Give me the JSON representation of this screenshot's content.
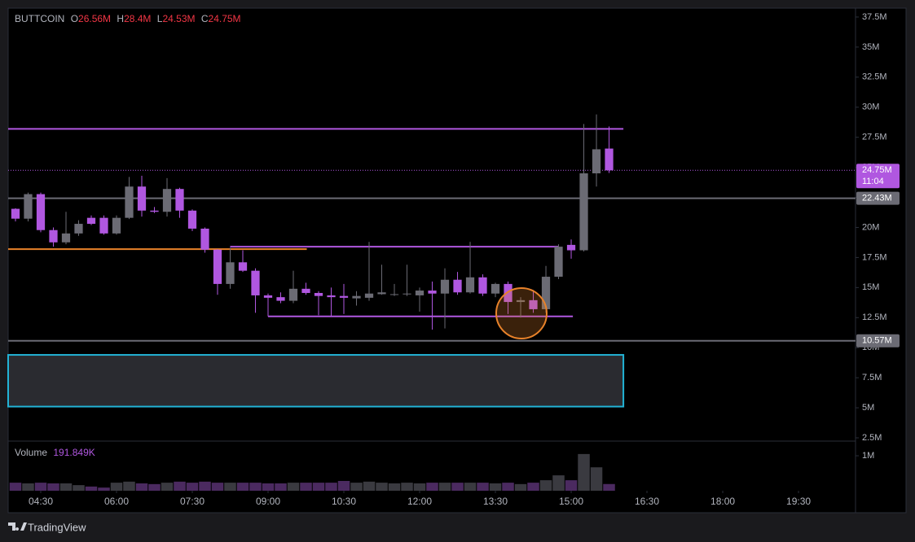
{
  "chart_data": {
    "type": "candlestick",
    "symbol": "BUTTCOIN",
    "legend_labels": [
      "O",
      "H",
      "L",
      "C"
    ],
    "legend_values": [
      "26.56M",
      "28.4M",
      "24.53M",
      "24.75M"
    ],
    "x": [
      240,
      255,
      270,
      285,
      300,
      315,
      330,
      345,
      360,
      375,
      390,
      405,
      420,
      435,
      450,
      465,
      480,
      495,
      510,
      525,
      540,
      555,
      570,
      585,
      600,
      615,
      630,
      645,
      660,
      675,
      690,
      705,
      720,
      735,
      750,
      765,
      780,
      795,
      810,
      825,
      840,
      855,
      870,
      885,
      900,
      915,
      930,
      945
    ],
    "open": [
      21.55,
      20.73,
      22.77,
      19.78,
      18.76,
      19.5,
      20.8,
      20.8,
      19.5,
      20.8,
      23.4,
      21.4,
      21.3,
      23.2,
      21.4,
      19.9,
      18.15,
      15.3,
      17.1,
      16.4,
      14.35,
      14.2,
      13.9,
      14.9,
      14.55,
      14.35,
      14.3,
      14.1,
      14.15,
      14.45,
      14.4,
      14.45,
      14.35,
      14.75,
      14.5,
      15.65,
      14.6,
      15.85,
      14.5,
      15.3,
      13.8,
      13.95,
      13.2,
      15.9,
      18.55,
      18.1,
      24.5,
      26.56
    ],
    "high": [
      21.6,
      22.9,
      22.9,
      20.0,
      21.3,
      20.6,
      21.0,
      21.0,
      21.0,
      24.2,
      24.3,
      21.7,
      24.1,
      23.3,
      21.5,
      20.0,
      18.2,
      18.3,
      18.1,
      16.6,
      14.5,
      14.6,
      16.4,
      15.4,
      14.7,
      15.0,
      15.3,
      14.7,
      18.8,
      16.9,
      15.3,
      16.9,
      15.0,
      15.5,
      16.6,
      16.3,
      18.8,
      16.1,
      15.4,
      15.5,
      14.2,
      14.8,
      16.8,
      18.6,
      19.0,
      28.6,
      29.4,
      28.4
    ],
    "low": [
      20.5,
      20.5,
      19.6,
      18.4,
      18.6,
      19.3,
      20.2,
      19.4,
      19.4,
      20.7,
      20.9,
      21.2,
      20.9,
      20.8,
      19.7,
      17.9,
      14.4,
      14.9,
      16.3,
      12.9,
      12.6,
      13.7,
      13.7,
      14.4,
      12.7,
      12.6,
      12.8,
      13.5,
      13.9,
      14.4,
      14.3,
      14.3,
      13.0,
      11.5,
      11.6,
      14.4,
      14.5,
      14.3,
      14.2,
      12.8,
      12.5,
      12.9,
      12.9,
      15.7,
      17.4,
      18.0,
      23.4,
      24.53
    ],
    "close": [
      20.73,
      22.77,
      19.78,
      18.76,
      19.5,
      20.3,
      20.3,
      19.5,
      20.8,
      23.4,
      21.4,
      21.3,
      23.2,
      21.4,
      19.9,
      18.15,
      15.3,
      17.1,
      16.4,
      14.35,
      14.15,
      13.9,
      14.9,
      14.55,
      14.3,
      14.2,
      14.15,
      14.3,
      14.5,
      14.6,
      14.45,
      14.5,
      14.75,
      14.5,
      15.65,
      14.6,
      15.85,
      14.5,
      15.3,
      13.8,
      13.95,
      13.2,
      15.9,
      18.4,
      18.1,
      24.5,
      26.5,
      24.75
    ],
    "up_color": "#6b6b74",
    "down_color": "#b057e0",
    "xlim": [
      231.3,
      1237.7
    ],
    "xticks": [
      {
        "value": 270,
        "label": "04:30"
      },
      {
        "value": 360,
        "label": "06:00"
      },
      {
        "value": 450,
        "label": "07:30"
      },
      {
        "value": 540,
        "label": "09:00"
      },
      {
        "value": 630,
        "label": "10:30"
      },
      {
        "value": 720,
        "label": "12:00"
      },
      {
        "value": 810,
        "label": "13:30"
      },
      {
        "value": 900,
        "label": "15:00"
      },
      {
        "value": 990,
        "label": "16:30"
      },
      {
        "value": 1080,
        "label": "18:00"
      },
      {
        "value": 1170,
        "label": "19:30"
      }
    ],
    "ylim": [
      2.23,
      38.24
    ],
    "yticks": [
      {
        "value": 2.5,
        "label": "2.5M"
      },
      {
        "value": 5,
        "label": "5M"
      },
      {
        "value": 7.5,
        "label": "7.5M"
      },
      {
        "value": 10,
        "label": "10M"
      },
      {
        "value": 12.5,
        "label": "12.5M"
      },
      {
        "value": 15,
        "label": "15M"
      },
      {
        "value": 17.5,
        "label": "17.5M"
      },
      {
        "value": 20,
        "label": "20M"
      },
      {
        "value": 22.5,
        "label": "22.5M"
      },
      {
        "value": 25,
        "label": "25M"
      },
      {
        "value": 27.5,
        "label": "27.5M"
      },
      {
        "value": 30,
        "label": "30M"
      },
      {
        "value": 32.5,
        "label": "32.5M"
      },
      {
        "value": 35,
        "label": "35M"
      },
      {
        "value": 37.5,
        "label": "37.5M"
      }
    ],
    "grid": false,
    "volume": {
      "title": "Volume",
      "value_label": "191.849K",
      "values": [
        0.23,
        0.21,
        0.23,
        0.21,
        0.21,
        0.16,
        0.12,
        0.09,
        0.23,
        0.26,
        0.21,
        0.19,
        0.23,
        0.26,
        0.23,
        0.26,
        0.23,
        0.23,
        0.23,
        0.23,
        0.21,
        0.21,
        0.23,
        0.23,
        0.23,
        0.23,
        0.28,
        0.23,
        0.26,
        0.23,
        0.21,
        0.23,
        0.21,
        0.23,
        0.23,
        0.23,
        0.23,
        0.23,
        0.21,
        0.23,
        0.19,
        0.23,
        0.3,
        0.44,
        0.3,
        1.05,
        0.67,
        0.191849
      ],
      "up_color": "#3a3a40",
      "down_color": "#4b2a60",
      "ylim": [
        0,
        1.35
      ],
      "yticks": [
        {
          "value": 1,
          "label": "1M"
        }
      ]
    },
    "price_lines": [
      {
        "value": 24.75,
        "label": "24.75M",
        "sublabel": "11:04",
        "color": "#b057e0",
        "style": "dotted"
      },
      {
        "value": 22.43,
        "label": "22.43M",
        "color": "#6b6b74",
        "style": "solid"
      },
      {
        "value": 10.57,
        "label": "10.57M",
        "color": "#6b6b74",
        "style": "solid"
      }
    ],
    "trend_lines": [
      {
        "value": 28.2,
        "x": [
          231.3,
          962
        ],
        "color": "#b057e0"
      },
      {
        "value": 18.2,
        "x": [
          231.3,
          586
        ],
        "color": "#e8822a"
      },
      {
        "value": 18.4,
        "x": [
          495,
          885
        ],
        "color": "#b057e0"
      },
      {
        "value": 12.6,
        "x": [
          540,
          902
        ],
        "color": "#b057e0"
      }
    ],
    "zones": [
      {
        "ylim": [
          5.1,
          9.4
        ],
        "x": [
          231.3,
          962
        ],
        "color": "#22b3d6"
      }
    ]
  },
  "footer": {
    "brand": "TradingView"
  }
}
